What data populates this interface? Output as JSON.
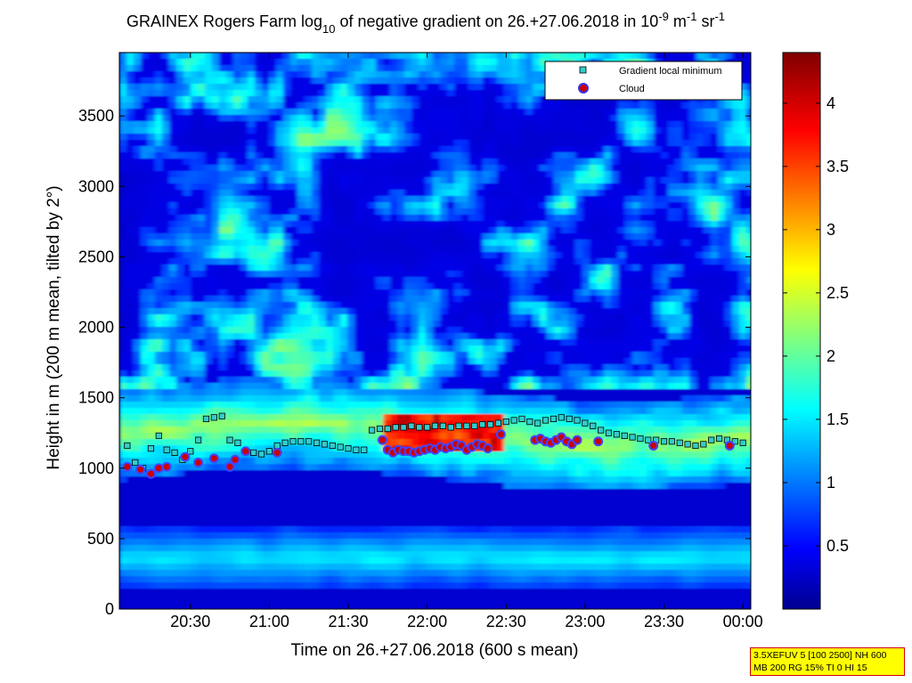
{
  "chart_data": {
    "type": "heatmap",
    "title_main": "GRAINEX Rogers Farm log",
    "title_sub": "10",
    "title_mid": " of negative gradient on 26.+27.06.2018 in 10",
    "title_exp1": "-9",
    "title_unit1": " m",
    "title_exp2": "-1",
    "title_unit2": " sr",
    "title_exp3": "-1",
    "xlabel": "Time on 26.+27.06.2018 (600 s mean)",
    "ylabel": "Height in m (200 m mean, tilted by 2°)",
    "x_ticks": [
      "20:30",
      "21:00",
      "21:30",
      "22:00",
      "22:30",
      "23:00",
      "23:30",
      "00:00"
    ],
    "y_ticks": [
      "0",
      "500",
      "1000",
      "1500",
      "2000",
      "2500",
      "3000",
      "3500"
    ],
    "ylim": [
      0,
      3950
    ],
    "xlim": [
      "20:03",
      "00:03"
    ],
    "colorbar": {
      "ticks": [
        "0.5",
        "1",
        "1.5",
        "2",
        "2.5",
        "3",
        "3.5",
        "4"
      ],
      "range": [
        0,
        4.4
      ],
      "colormap": "jet"
    },
    "legend": {
      "position": "top-right",
      "entries": [
        {
          "label": "Gradient local minimum",
          "marker": "square",
          "color": "#33cccc"
        },
        {
          "label": "Cloud",
          "marker": "circle",
          "color": "#cc0000"
        }
      ]
    },
    "series": [
      {
        "name": "Gradient local minimum",
        "time_min": [
          3,
          6,
          9,
          12,
          15,
          18,
          21,
          24,
          27,
          30,
          33,
          36,
          39,
          42,
          45,
          48,
          51,
          54,
          57,
          60,
          63,
          66,
          69,
          72,
          75,
          78,
          81,
          84,
          87,
          90,
          93,
          96,
          99,
          102,
          105,
          108,
          111,
          114,
          117,
          120,
          123,
          126,
          129,
          132,
          135,
          138,
          141,
          144,
          147,
          150,
          153,
          156,
          159,
          162,
          165,
          168,
          171,
          174,
          177,
          180,
          183,
          186,
          189,
          192,
          195,
          198,
          201,
          204,
          207,
          210,
          213,
          216,
          219,
          222,
          225,
          228,
          231,
          234,
          237
        ],
        "height_m": [
          1160,
          1040,
          1000,
          1140,
          1230,
          1130,
          1110,
          1060,
          1120,
          1200,
          1350,
          1360,
          1370,
          1200,
          1180,
          1120,
          1110,
          1100,
          1120,
          1160,
          1180,
          1190,
          1190,
          1190,
          1180,
          1170,
          1160,
          1150,
          1140,
          1130,
          1130,
          1270,
          1280,
          1280,
          1290,
          1290,
          1300,
          1290,
          1290,
          1300,
          1300,
          1290,
          1300,
          1300,
          1300,
          1310,
          1310,
          1320,
          1330,
          1340,
          1350,
          1330,
          1320,
          1340,
          1350,
          1360,
          1350,
          1340,
          1320,
          1300,
          1270,
          1250,
          1240,
          1230,
          1220,
          1210,
          1200,
          1200,
          1190,
          1190,
          1180,
          1170,
          1160,
          1170,
          1200,
          1210,
          1200,
          1190,
          1180
        ]
      },
      {
        "name": "Cloud",
        "time_min": [
          3,
          8,
          12,
          15,
          18,
          25,
          30,
          36,
          42,
          44,
          48,
          60,
          100,
          102,
          104,
          106,
          108,
          110,
          112,
          114,
          116,
          118,
          120,
          122,
          124,
          126,
          128,
          130,
          132,
          134,
          136,
          138,
          140,
          145,
          158,
          160,
          162,
          164,
          166,
          168,
          170,
          172,
          174,
          182,
          203,
          232
        ],
        "height_m": [
          1010,
          990,
          960,
          1000,
          1010,
          1080,
          1040,
          1070,
          1010,
          1060,
          1120,
          1110,
          1200,
          1130,
          1110,
          1130,
          1120,
          1120,
          1110,
          1120,
          1130,
          1140,
          1130,
          1150,
          1140,
          1150,
          1170,
          1160,
          1130,
          1150,
          1170,
          1160,
          1140,
          1240,
          1200,
          1210,
          1190,
          1180,
          1200,
          1220,
          1190,
          1170,
          1200,
          1190,
          1160,
          1160
        ]
      }
    ]
  },
  "infobox": {
    "line1": "3.5XEFUV 5 [100 2500] NH 600",
    "line2": "MB 200 RG 15% TI 0 HI 15"
  }
}
